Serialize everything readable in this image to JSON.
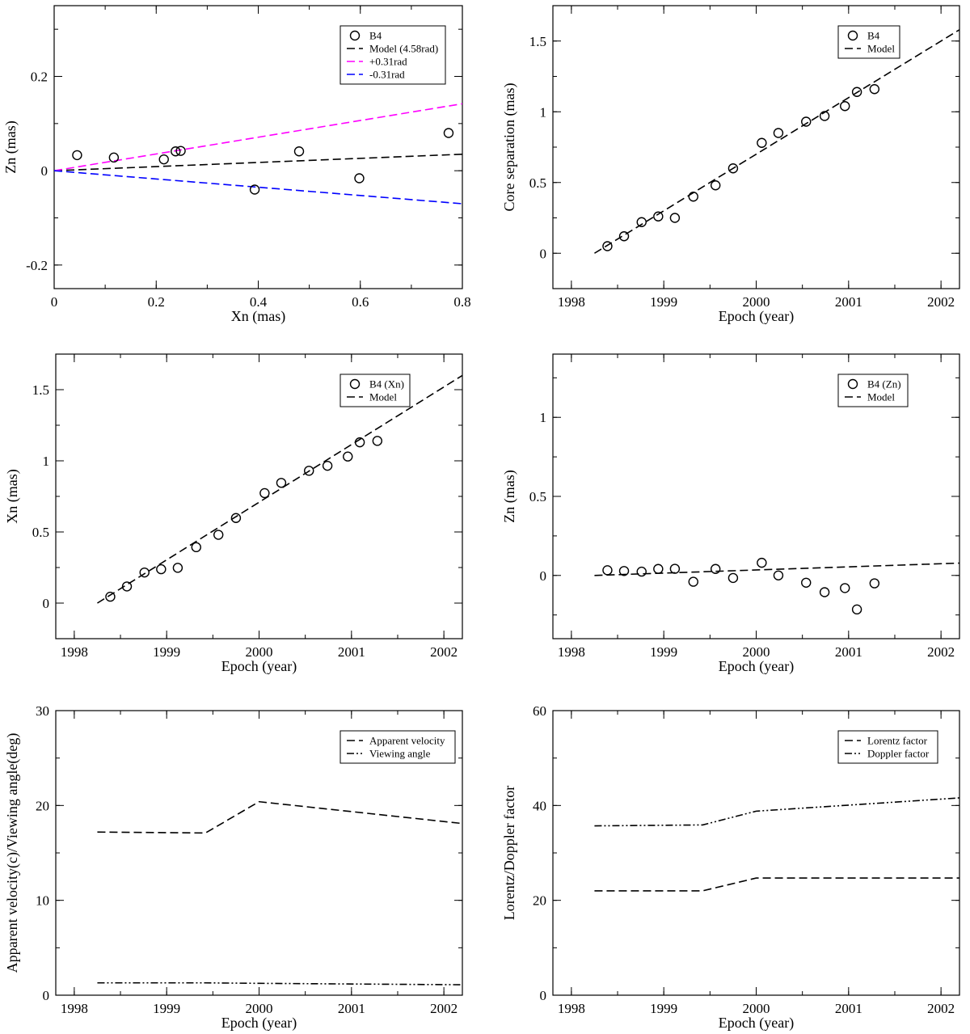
{
  "chart_data": [
    {
      "id": "p1",
      "type": "scatter",
      "xlabel": "Xn (mas)",
      "ylabel": "Zn (mas)",
      "xlim": [
        0,
        0.8
      ],
      "ylim": [
        -0.25,
        0.35
      ],
      "xticks": [
        0,
        0.2,
        0.4,
        0.6,
        0.8
      ],
      "xtick_labels": [
        "0",
        "0.2",
        "0.4",
        "0.6",
        "0.8"
      ],
      "yticks": [
        -0.2,
        0,
        0.2
      ],
      "ytick_labels": [
        "-0.2",
        "0",
        "0.2"
      ],
      "x_minor": 0.1,
      "y_minor": 0.1,
      "legend": [
        "B4",
        "Model (4.58rad)",
        "+0.31rad",
        "-0.31rad"
      ],
      "series": [
        {
          "name": "B4",
          "kind": "points",
          "color": "#000000",
          "x": [
            0.045,
            0.117,
            0.215,
            0.238,
            0.248,
            0.393,
            0.48,
            0.598,
            0.773
          ],
          "y": [
            0.033,
            0.028,
            0.024,
            0.041,
            0.042,
            -0.04,
            0.041,
            -0.016,
            0.08
          ]
        },
        {
          "name": "Model (4.58rad)",
          "kind": "dashed",
          "color": "#000000",
          "x": [
            0,
            0.8
          ],
          "y": [
            0,
            0.035
          ]
        },
        {
          "name": "+0.31rad",
          "kind": "dashed",
          "color": "#ff00ff",
          "x": [
            0,
            0.8
          ],
          "y": [
            0,
            0.142
          ]
        },
        {
          "name": "-0.31rad",
          "kind": "dashed",
          "color": "#0000ff",
          "x": [
            0,
            0.8
          ],
          "y": [
            0,
            -0.07
          ]
        }
      ]
    },
    {
      "id": "p2",
      "type": "scatter",
      "xlabel": "Epoch (year)",
      "ylabel": "Core separation (mas)",
      "xlim": [
        1997.8,
        2002.2
      ],
      "ylim": [
        -0.25,
        1.75
      ],
      "xticks": [
        1998,
        1999,
        2000,
        2001,
        2002
      ],
      "xtick_labels": [
        "1998",
        "1999",
        "2000",
        "2001",
        "2002"
      ],
      "yticks": [
        0,
        0.5,
        1,
        1.5
      ],
      "ytick_labels": [
        "0",
        "0.5",
        "1",
        "1.5"
      ],
      "x_minor": 0.5,
      "y_minor": 0.25,
      "legend": [
        "B4",
        "Model"
      ],
      "series": [
        {
          "name": "B4",
          "kind": "points",
          "color": "#000000",
          "x": [
            1998.39,
            1998.57,
            1998.76,
            1998.94,
            1999.12,
            1999.32,
            1999.56,
            1999.75,
            2000.06,
            2000.24,
            2000.54,
            2000.74,
            2000.96,
            2001.09,
            2001.28
          ],
          "y": [
            0.05,
            0.12,
            0.22,
            0.26,
            0.25,
            0.4,
            0.48,
            0.6,
            0.78,
            0.85,
            0.93,
            0.97,
            1.04,
            1.14,
            1.16
          ]
        },
        {
          "name": "Model",
          "kind": "dashed",
          "color": "#000000",
          "x": [
            1998.25,
            2002.2
          ],
          "y": [
            0.0,
            1.58
          ]
        }
      ]
    },
    {
      "id": "p3",
      "type": "scatter",
      "xlabel": "Epoch (year)",
      "ylabel": "Xn (mas)",
      "xlim": [
        1997.8,
        2002.2
      ],
      "ylim": [
        -0.25,
        1.75
      ],
      "xticks": [
        1998,
        1999,
        2000,
        2001,
        2002
      ],
      "xtick_labels": [
        "1998",
        "1999",
        "2000",
        "2001",
        "2002"
      ],
      "yticks": [
        0,
        0.5,
        1,
        1.5
      ],
      "ytick_labels": [
        "0",
        "0.5",
        "1",
        "1.5"
      ],
      "x_minor": 0.5,
      "y_minor": 0.25,
      "legend": [
        "B4 (Xn)",
        "Model"
      ],
      "series": [
        {
          "name": "B4 (Xn)",
          "kind": "points",
          "color": "#000000",
          "x": [
            1998.39,
            1998.57,
            1998.76,
            1998.94,
            1999.12,
            1999.32,
            1999.56,
            1999.75,
            2000.06,
            2000.24,
            2000.54,
            2000.74,
            2000.96,
            2001.09,
            2001.28
          ],
          "y": [
            0.045,
            0.117,
            0.215,
            0.238,
            0.248,
            0.393,
            0.48,
            0.598,
            0.773,
            0.845,
            0.93,
            0.965,
            1.03,
            1.13,
            1.14
          ]
        },
        {
          "name": "Model",
          "kind": "dashed",
          "color": "#000000",
          "x": [
            1998.25,
            2002.2
          ],
          "y": [
            0.0,
            1.6
          ]
        }
      ]
    },
    {
      "id": "p4",
      "type": "scatter",
      "xlabel": "Epoch (year)",
      "ylabel": "Zn (mas)",
      "xlim": [
        1997.8,
        2002.2
      ],
      "ylim": [
        -0.4,
        1.4
      ],
      "xticks": [
        1998,
        1999,
        2000,
        2001,
        2002
      ],
      "xtick_labels": [
        "1998",
        "1999",
        "2000",
        "2001",
        "2002"
      ],
      "yticks": [
        0,
        0.5,
        1
      ],
      "ytick_labels": [
        "0",
        "0.5",
        "1"
      ],
      "x_minor": 0.5,
      "y_minor": 0.25,
      "legend": [
        "B4 (Zn)",
        "Model"
      ],
      "series": [
        {
          "name": "B4 (Zn)",
          "kind": "points",
          "color": "#000000",
          "x": [
            1998.39,
            1998.57,
            1998.76,
            1998.94,
            1999.12,
            1999.32,
            1999.56,
            1999.75,
            2000.06,
            2000.24,
            2000.54,
            2000.74,
            2000.96,
            2001.09,
            2001.28
          ],
          "y": [
            0.033,
            0.028,
            0.024,
            0.041,
            0.042,
            -0.04,
            0.041,
            -0.016,
            0.08,
            0.0,
            -0.046,
            -0.106,
            -0.08,
            -0.215,
            -0.05
          ]
        },
        {
          "name": "Model",
          "kind": "dashed",
          "color": "#000000",
          "x": [
            1998.25,
            2002.2
          ],
          "y": [
            0.0,
            0.078
          ]
        }
      ]
    },
    {
      "id": "p5",
      "type": "line",
      "xlabel": "Epoch (year)",
      "ylabel": "Apparent velocity(c)/Viewing angle(deg)",
      "xlim": [
        1997.8,
        2002.2
      ],
      "ylim": [
        0,
        30
      ],
      "xticks": [
        1998,
        1999,
        2000,
        2001,
        2002
      ],
      "xtick_labels": [
        "1998",
        "1999",
        "2000",
        "2001",
        "2002"
      ],
      "yticks": [
        0,
        10,
        20,
        30
      ],
      "ytick_labels": [
        "0",
        "10",
        "20",
        "30"
      ],
      "x_minor": 0.5,
      "y_minor": 5,
      "legend": [
        "Apparent velocity",
        "Viewing angle"
      ],
      "series": [
        {
          "name": "Apparent velocity",
          "kind": "dashed",
          "color": "#000000",
          "x": [
            1998.25,
            1999.42,
            2000.0,
            2002.2
          ],
          "y": [
            17.2,
            17.1,
            20.4,
            18.1
          ]
        },
        {
          "name": "Viewing angle",
          "kind": "dashdotdot",
          "color": "#000000",
          "x": [
            1998.25,
            1999.42,
            2000.0,
            2002.2
          ],
          "y": [
            1.3,
            1.3,
            1.25,
            1.1
          ]
        }
      ]
    },
    {
      "id": "p6",
      "type": "line",
      "xlabel": "Epoch (year)",
      "ylabel": "Lorentz/Doppler factor",
      "xlim": [
        1997.8,
        2002.2
      ],
      "ylim": [
        0,
        60
      ],
      "xticks": [
        1998,
        1999,
        2000,
        2001,
        2002
      ],
      "xtick_labels": [
        "1998",
        "1999",
        "2000",
        "2001",
        "2002"
      ],
      "yticks": [
        0,
        20,
        40,
        60
      ],
      "ytick_labels": [
        "0",
        "20",
        "40",
        "60"
      ],
      "x_minor": 0.5,
      "y_minor": 10,
      "legend": [
        "Lorentz factor",
        "Doppler factor"
      ],
      "series": [
        {
          "name": "Lorentz factor",
          "kind": "dashed",
          "color": "#000000",
          "x": [
            1998.25,
            1999.42,
            2000.0,
            2002.2
          ],
          "y": [
            22.0,
            22.0,
            24.7,
            24.7
          ]
        },
        {
          "name": "Doppler factor",
          "kind": "dashdotdot",
          "color": "#000000",
          "x": [
            1998.25,
            1999.42,
            2000.0,
            2002.2
          ],
          "y": [
            35.7,
            35.9,
            38.8,
            41.6
          ]
        }
      ]
    }
  ]
}
